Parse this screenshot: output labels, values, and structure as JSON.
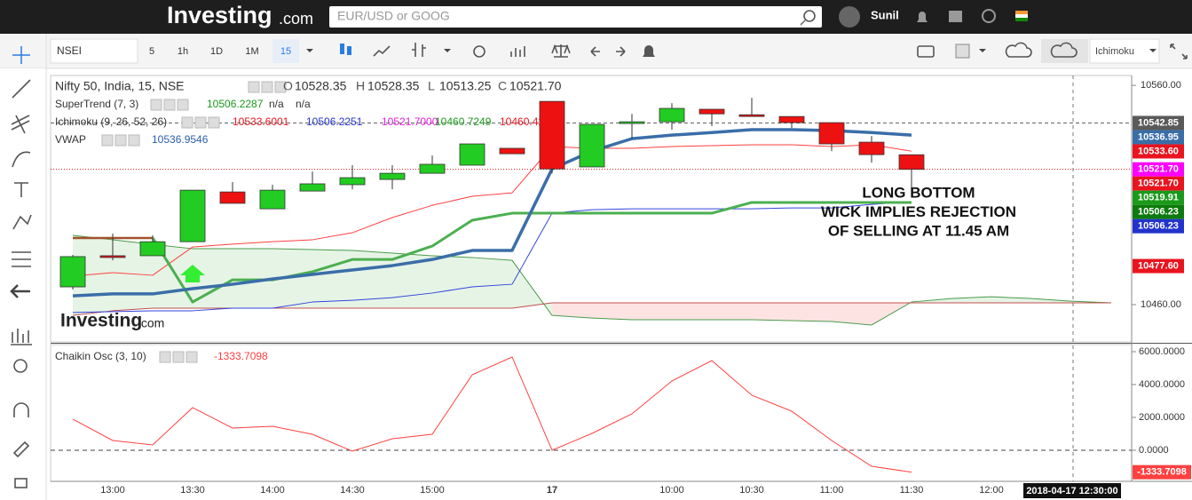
{
  "header": {
    "logo": "Investing",
    "logo_suffix": ".com",
    "search_placeholder": "EUR/USD or GOOG",
    "user": "Sunil"
  },
  "toolbar": {
    "symbol": "NSEI",
    "intervals": [
      "5",
      "1h",
      "1D",
      "1M",
      "15"
    ],
    "selected_interval": "15",
    "indicator": "Ichimoku"
  },
  "chart_data": {
    "type": "candlestick",
    "title": "Nifty 50, India, 15, NSE",
    "ohlc_keys": [
      "O",
      "H",
      "L",
      "C"
    ],
    "ohlc_values": [
      10528.35,
      10528.35,
      10513.25,
      10521.7
    ],
    "ohlc_value_labels": [
      "10528.35",
      "10528.35",
      "10513.25",
      "10521.70"
    ],
    "indicators": [
      {
        "name": "SuperTrend (7, 3)",
        "values": [
          10506.2287
        ],
        "colors": [
          "#1a9a1a"
        ],
        "notes": [
          "n/a",
          "n/a"
        ]
      },
      {
        "name": "Ichimoku (9, 26, 52, 26)",
        "values": [
          10533.6001,
          10506.2251,
          10521.7,
          10460.7249,
          10460.42
        ],
        "value_labels": [
          "10533.6001",
          "10506.2251",
          "10521.7000",
          "10460.7249",
          "10460.42"
        ],
        "colors": [
          "#e8141e",
          "#2233cc",
          "#e020e0",
          "#1a9a1a",
          "#e8141e"
        ]
      },
      {
        "name": "VWAP",
        "values": [
          10536.9546
        ],
        "colors": [
          "#2a5ea8"
        ]
      }
    ],
    "categories": [
      null,
      "13:00",
      null,
      "13:30",
      null,
      "14:00",
      null,
      "14:30",
      null,
      "15:00",
      null,
      null,
      "17",
      null,
      null,
      "10:00",
      null,
      "10:30",
      null,
      "11:00",
      null,
      "11:30",
      null,
      "12:00",
      null,
      null,
      null
    ],
    "open": [
      10468.1,
      10482.3,
      10482.3,
      10488.7,
      10511.4,
      10503.7,
      10511.8,
      10514.7,
      10517.1,
      10519.9,
      10523.6,
      10531.3,
      10552.7,
      10522.8,
      10542.6,
      10543.4,
      10549.1,
      10546.6,
      10545.8,
      10543.0,
      10534.1,
      10528.35,
      null,
      null,
      null,
      null,
      null
    ],
    "high": [
      10482.7,
      10492.4,
      10491.6,
      10512.2,
      10515.9,
      10514.7,
      10520.7,
      10523.6,
      10523.6,
      10528.0,
      10533.3,
      10531.3,
      10552.7,
      10542.2,
      10547.0,
      10551.9,
      10549.1,
      10554.3,
      10545.8,
      10543.0,
      10536.9,
      10528.35,
      null,
      null,
      null,
      null,
      null
    ],
    "low": [
      10466.9,
      10480.2,
      10482.3,
      10488.7,
      10506.2,
      10503.7,
      10511.8,
      10512.6,
      10512.6,
      10519.9,
      10523.6,
      10528.8,
      10519.9,
      10522.8,
      10535.7,
      10539.8,
      10541.4,
      10545.8,
      10540.6,
      10530.0,
      10524.8,
      10513.25,
      null,
      null,
      null,
      null,
      null
    ],
    "close": [
      10481.9,
      10481.5,
      10488.7,
      10512.2,
      10506.2,
      10512.2,
      10515.1,
      10517.9,
      10519.9,
      10524.0,
      10533.3,
      10528.8,
      10521.9,
      10542.2,
      10543.4,
      10549.5,
      10547.0,
      10545.8,
      10543.0,
      10533.3,
      10528.4,
      10521.7,
      null,
      null,
      null,
      null,
      null
    ],
    "up_color": "#22cc22",
    "down_color": "#ee1111",
    "cloud": {
      "fill_up": "rgba(76,175,80,0.14)",
      "fill_down": "rgba(244,67,54,0.14)",
      "span_a": {
        "color": "#4a9b4a",
        "values": [
          10491.6,
          10489.6,
          10487.5,
          10485.5,
          10485.5,
          10485.5,
          10485.1,
          10484.7,
          10483.5,
          10482.3,
          10481.5,
          10480.2,
          10455.1,
          10453.9,
          10453.1,
          10453.1,
          10453.1,
          10453.1,
          10452.7,
          10452.3,
          10450.7,
          10461.2,
          10462.8,
          10463.6,
          10462.8,
          10461.6,
          10460.8
        ]
      },
      "span_b": {
        "color": "#c0504d",
        "values": [
          10455.1,
          10457.2,
          10458.4,
          10458.4,
          10458.4,
          10458.4,
          10458.4,
          10458.4,
          10458.4,
          10458.4,
          10458.4,
          10458.4,
          10460.8,
          10460.8,
          10460.8,
          10460.8,
          10460.8,
          10460.8,
          10460.8,
          10460.8,
          10460.8,
          10460.8,
          10460.8,
          10460.8,
          10460.8,
          10460.8,
          10460.8
        ]
      }
    },
    "lines": [
      {
        "color": "#ff4040",
        "width": 1,
        "values": [
          10473.0,
          10474.6,
          10473.4,
          10486.3,
          10487.6,
          10488.7,
          10489.6,
          10492.8,
          10499.7,
          10505.3,
          10509.4,
          10511.0,
          10532.1,
          10531.3,
          10531.3,
          10532.1,
          10532.5,
          10532.9,
          10532.9,
          10532.1,
          10532.9,
          10530.0,
          null,
          null,
          null,
          null,
          null
        ]
      },
      {
        "color": "#3344dd",
        "width": 1,
        "values": [
          10456.4,
          10456.8,
          10457.2,
          10457.2,
          10458.4,
          10458.4,
          10461.2,
          10462.0,
          10463.2,
          10465.3,
          10468.1,
          10469.3,
          10501.7,
          10503.3,
          10503.7,
          10503.7,
          10503.7,
          10503.7,
          10504.1,
          10504.1,
          10505.7,
          10507.0,
          null,
          null,
          null,
          null,
          null
        ]
      },
      {
        "color": "#a0522d",
        "width": 2.5,
        "values": [
          10490.4,
          10490.4,
          10490.4,
          null,
          null,
          null,
          null,
          null,
          null,
          null,
          null,
          null,
          null,
          null,
          null,
          null,
          null,
          null,
          null,
          null,
          null,
          null,
          null,
          null,
          null,
          null,
          null
        ]
      },
      {
        "color": "#4caf50",
        "width": 3,
        "values": [
          null,
          null,
          10490.4,
          10461.2,
          10471.3,
          10471.3,
          10475.0,
          10480.6,
          10480.6,
          10486.7,
          10498.5,
          10501.7,
          10501.7,
          10501.7,
          10501.7,
          10501.7,
          10501.7,
          10506.6,
          10506.6,
          10506.6,
          10506.6,
          10506.6,
          null,
          null,
          null,
          null,
          null
        ]
      },
      {
        "color": "#3a6ea8",
        "width": 3.5,
        "values": [
          10464.0,
          10464.9,
          10464.9,
          10467.3,
          10469.3,
          10471.7,
          10473.8,
          10475.8,
          10477.8,
          10480.6,
          10484.7,
          10484.7,
          10521.9,
          10530.0,
          10535.7,
          10537.3,
          10538.5,
          10539.8,
          10539.8,
          10539.4,
          10538.5,
          10537.3,
          null,
          null,
          null,
          null,
          null
        ]
      }
    ],
    "ylim": [
      10443,
      10564.5
    ],
    "yticks": [
      {
        "value": 10560,
        "label": "10560.00"
      },
      {
        "value": 10460,
        "label": "10460.00"
      }
    ],
    "price_tags": [
      10542.85,
      10536.95,
      10533.6,
      10521.7,
      10521.7,
      10519.91,
      10506.23,
      10506.23,
      10477.6
    ],
    "price_tag_labels": [
      "10542.85",
      "10536.95",
      "10533.60",
      "10521.70",
      "10521.70",
      "10519.91",
      "10506.23",
      "10506.23",
      "10477.60"
    ],
    "price_tag_colors": [
      "#5a5a5a",
      "#3a6ea8",
      "#e8141e",
      "#ff00ff",
      "#e8141e",
      "#1a9a1a",
      "#0d7a0d",
      "#2233cc",
      "#e8141e"
    ],
    "annotation": [
      "LONG BOTTOM",
      "WICK IMPLIES REJECTION",
      "OF SELLING AT 11.45 AM"
    ],
    "crosshair_label": "2018-04-17 12:30:00",
    "oscillator": {
      "name": "Chaikin Osc (3, 10)",
      "value": -1333.7098,
      "color": "#ff4040",
      "values": [
        1892,
        595,
        324,
        2595,
        1351,
        1459,
        973,
        -54,
        703,
        973,
        4595,
        5676,
        0,
        1027,
        2216,
        4216,
        5459,
        3351,
        2378,
        595,
        -973,
        -1333.7098,
        null,
        null,
        null,
        null,
        null
      ],
      "ylim": [
        -1892,
        6432
      ],
      "yticks": [
        {
          "value": 6000,
          "label": "6000.0000"
        },
        {
          "value": 4000,
          "label": "4000.0000"
        },
        {
          "value": 2000,
          "label": "2000.0000"
        },
        {
          "value": 0,
          "label": "0.0000"
        }
      ]
    }
  }
}
